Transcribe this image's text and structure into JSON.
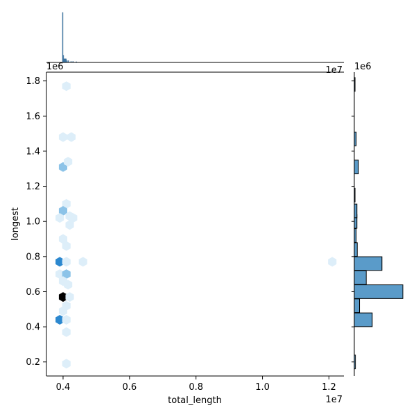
{
  "chart_data": {
    "type": "hexbin",
    "xlabel": "total_length",
    "ylabel": "longest",
    "x_offset_label": "1e7",
    "y_offset_label": "1e6",
    "xlim": [
      0.35,
      1.245
    ],
    "ylim": [
      0.12,
      1.85
    ],
    "x_ticks": [
      {
        "value": 0.4,
        "label": "0.4"
      },
      {
        "value": 0.6,
        "label": "0.6"
      },
      {
        "value": 0.8,
        "label": "0.8"
      },
      {
        "value": 1.0,
        "label": "1.0"
      },
      {
        "value": 1.2,
        "label": "1.2"
      }
    ],
    "y_ticks": [
      {
        "value": 0.2,
        "label": "0.2"
      },
      {
        "value": 0.4,
        "label": "0.4"
      },
      {
        "value": 0.6,
        "label": "0.6"
      },
      {
        "value": 0.8,
        "label": "0.8"
      },
      {
        "value": 1.0,
        "label": "1.0"
      },
      {
        "value": 1.2,
        "label": "1.2"
      },
      {
        "value": 1.4,
        "label": "1.4"
      },
      {
        "value": 1.6,
        "label": "1.6"
      },
      {
        "value": 1.8,
        "label": "1.8"
      }
    ],
    "colors": {
      "hex_low": "#ddeef9",
      "hex_mid": "#8cc3e8",
      "hex_high": "#2c88cf",
      "hex_max": "#000000",
      "marginal_fill": "#5a9bc9",
      "marginal_edge": "#1f4e79"
    },
    "hexbins": [
      {
        "x": 0.41,
        "y": 1.77,
        "count": 1
      },
      {
        "x": 0.4,
        "y": 1.48,
        "count": 1
      },
      {
        "x": 0.425,
        "y": 1.48,
        "count": 1
      },
      {
        "x": 0.4,
        "y": 1.31,
        "count": 3
      },
      {
        "x": 0.415,
        "y": 1.34,
        "count": 1
      },
      {
        "x": 0.41,
        "y": 1.1,
        "count": 1
      },
      {
        "x": 0.4,
        "y": 1.06,
        "count": 2
      },
      {
        "x": 0.42,
        "y": 1.03,
        "count": 1
      },
      {
        "x": 0.39,
        "y": 1.02,
        "count": 1
      },
      {
        "x": 0.43,
        "y": 1.02,
        "count": 1
      },
      {
        "x": 0.42,
        "y": 0.98,
        "count": 1
      },
      {
        "x": 0.4,
        "y": 0.9,
        "count": 1
      },
      {
        "x": 0.41,
        "y": 0.86,
        "count": 1
      },
      {
        "x": 0.39,
        "y": 0.77,
        "count": 5
      },
      {
        "x": 0.41,
        "y": 0.77,
        "count": 1
      },
      {
        "x": 0.46,
        "y": 0.77,
        "count": 1
      },
      {
        "x": 1.21,
        "y": 0.77,
        "count": 1
      },
      {
        "x": 0.39,
        "y": 0.7,
        "count": 1
      },
      {
        "x": 0.41,
        "y": 0.7,
        "count": 2
      },
      {
        "x": 0.4,
        "y": 0.66,
        "count": 1
      },
      {
        "x": 0.415,
        "y": 0.64,
        "count": 1
      },
      {
        "x": 0.4,
        "y": 0.57,
        "count": 7
      },
      {
        "x": 0.42,
        "y": 0.57,
        "count": 1
      },
      {
        "x": 0.41,
        "y": 0.52,
        "count": 1
      },
      {
        "x": 0.4,
        "y": 0.49,
        "count": 1
      },
      {
        "x": 0.39,
        "y": 0.44,
        "count": 4
      },
      {
        "x": 0.41,
        "y": 0.44,
        "count": 1
      },
      {
        "x": 0.41,
        "y": 0.37,
        "count": 1
      },
      {
        "x": 0.41,
        "y": 0.19,
        "count": 1
      }
    ],
    "marginal_x": {
      "bin_width": 0.002,
      "bins": [
        {
          "x": 0.399,
          "count": 14
        },
        {
          "x": 0.401,
          "count": 2
        },
        {
          "x": 0.403,
          "count": 1
        },
        {
          "x": 0.405,
          "count": 1
        },
        {
          "x": 0.407,
          "count": 1
        },
        {
          "x": 0.409,
          "count": 1
        },
        {
          "x": 0.412,
          "count": 0.5
        },
        {
          "x": 0.416,
          "count": 0.5
        },
        {
          "x": 0.424,
          "count": 0.3
        },
        {
          "x": 0.43,
          "count": 0.3
        },
        {
          "x": 0.44,
          "count": 0.2
        }
      ],
      "max": 14
    },
    "marginal_y": {
      "bin_height": 0.078,
      "bins": [
        {
          "y": 0.2,
          "count": 0.15
        },
        {
          "y": 0.44,
          "count": 2.4
        },
        {
          "y": 0.52,
          "count": 0.7
        },
        {
          "y": 0.6,
          "count": 6.5
        },
        {
          "y": 0.68,
          "count": 1.6
        },
        {
          "y": 0.76,
          "count": 3.7
        },
        {
          "y": 0.84,
          "count": 0.4
        },
        {
          "y": 0.92,
          "count": 0.25
        },
        {
          "y": 1.0,
          "count": 0.35
        },
        {
          "y": 1.06,
          "count": 0.35
        },
        {
          "y": 1.15,
          "count": 0.1
        },
        {
          "y": 1.31,
          "count": 0.55
        },
        {
          "y": 1.47,
          "count": 0.25
        },
        {
          "y": 1.78,
          "count": 0.1
        }
      ],
      "max": 6.5
    }
  }
}
